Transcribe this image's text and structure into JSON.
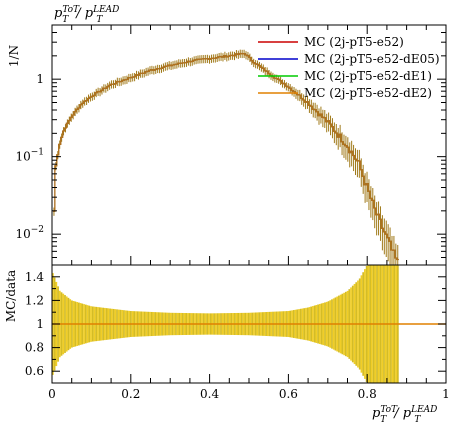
{
  "chart_data": [
    {
      "type": "line",
      "panel": "main",
      "title": "p_T^ToT / p_T^LEAD",
      "ylabel": "1/N",
      "yscale": "log",
      "xlim": [
        0,
        1
      ],
      "ylim": [
        0.004,
        5
      ],
      "yticks": [
        {
          "value": 0.01,
          "label": "10^-2",
          "base": "10",
          "exp": "−2"
        },
        {
          "value": 0.1,
          "label": "10^-1",
          "base": "10",
          "exp": "−1"
        },
        {
          "value": 1,
          "label": "1",
          "base": "1",
          "exp": ""
        }
      ],
      "legend_position": "top-right",
      "series": [
        {
          "name": "MC (2j-pT5-e52)",
          "color": "#cc0000"
        },
        {
          "name": "MC (2j-pT5-e52-dE05)",
          "color": "#0000cc"
        },
        {
          "name": "MC (2j-pT5-e52-dE1)",
          "color": "#00cc00"
        },
        {
          "name": "MC (2j-pT5-e52-dE2)",
          "color": "#e08000"
        }
      ],
      "x": [
        0.0025,
        0.01,
        0.02,
        0.03,
        0.05,
        0.075,
        0.1,
        0.15,
        0.2,
        0.25,
        0.3,
        0.35,
        0.4,
        0.45,
        0.49,
        0.51,
        0.55,
        0.6,
        0.65,
        0.7,
        0.75,
        0.78,
        0.8,
        0.82,
        0.85,
        0.87,
        0.88
      ],
      "y": [
        0.01,
        0.08,
        0.15,
        0.22,
        0.33,
        0.48,
        0.6,
        0.85,
        1.05,
        1.3,
        1.5,
        1.7,
        1.85,
        2.0,
        2.15,
        1.7,
        1.2,
        0.8,
        0.5,
        0.28,
        0.14,
        0.08,
        0.04,
        0.02,
        0.009,
        0.005,
        0.004
      ],
      "line_color": "#b07020"
    },
    {
      "type": "band",
      "panel": "ratio",
      "xlabel": "p_T^ToT / p_T^LEAD",
      "ylabel": "MC/data",
      "xlim": [
        0,
        1
      ],
      "ylim": [
        0.5,
        1.5
      ],
      "xticks": [
        0,
        0.2,
        0.4,
        0.6,
        0.8,
        1
      ],
      "xtick_labels": [
        "0",
        "0.2",
        "0.4",
        "0.6",
        "0.8",
        "1"
      ],
      "yticks": [
        0.6,
        0.8,
        1,
        1.2,
        1.4
      ],
      "ytick_labels": [
        "0.6",
        "0.8",
        "1",
        "1.2",
        "1.4"
      ],
      "reference": 1,
      "band_x": [
        0.0,
        0.02,
        0.05,
        0.1,
        0.2,
        0.3,
        0.4,
        0.5,
        0.6,
        0.65,
        0.7,
        0.75,
        0.78,
        0.8,
        0.82,
        0.85,
        0.87,
        0.88
      ],
      "band_halfwidth": [
        0.45,
        0.28,
        0.2,
        0.15,
        0.11,
        0.095,
        0.09,
        0.095,
        0.11,
        0.14,
        0.19,
        0.28,
        0.38,
        0.5,
        0.5,
        0.5,
        0.5,
        0.5
      ],
      "band_color": "#ccb000",
      "band_color_alt": "#eec600",
      "line_color": "#e08000"
    }
  ]
}
